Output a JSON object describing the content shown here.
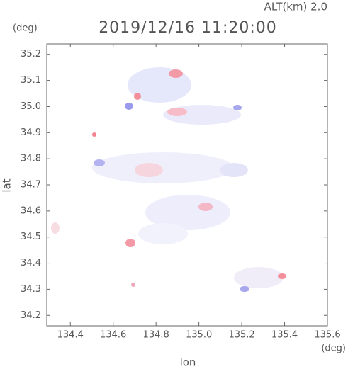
{
  "chart_data": {
    "type": "map",
    "title": "2019/12/16 11:20:00",
    "subtitle": "ALT(km) 2.0",
    "x_label": "lon",
    "y_label": "lat",
    "x_unit": "(deg)",
    "y_unit": "(deg)",
    "xlim": [
      134.29,
      135.6
    ],
    "ylim": [
      34.16,
      35.24
    ],
    "xticks": [
      134.4,
      134.6,
      134.8,
      {
        "value": 135,
        "label": "135.0"
      },
      135.2,
      135.4,
      135.6
    ],
    "yticks": [
      34.2,
      34.3,
      34.4,
      34.5,
      34.6,
      34.7,
      34.8,
      34.9,
      {
        "value": 35,
        "label": "35.0"
      },
      35.1,
      35.2
    ]
  }
}
